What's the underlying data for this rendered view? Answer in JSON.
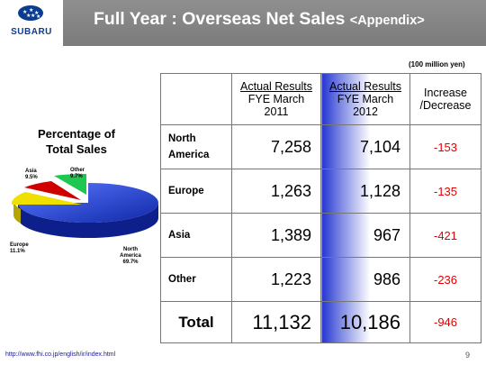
{
  "header": {
    "logo_text": "SUBARU",
    "title": "Full Year : Overseas Net Sales",
    "title_suffix": "<Appendix>"
  },
  "unit_note": "(100 million yen)",
  "pie": {
    "title_line1": "Percentage of",
    "title_line2": "Total Sales",
    "slices": [
      {
        "label": "North America",
        "pct": "69.7%",
        "value": 69.7,
        "color": "#1e3cc8"
      },
      {
        "label": "Europe",
        "pct": "11.1%",
        "value": 11.1,
        "color": "#f0e000"
      },
      {
        "label": "Asia",
        "pct": "9.5%",
        "value": 9.5,
        "color": "#d00000"
      },
      {
        "label": "Other",
        "pct": "9.7%",
        "value": 9.7,
        "color": "#1ec850"
      }
    ]
  },
  "table": {
    "col1_line1": "Actual Results",
    "col1_line2": "FYE March",
    "col1_line3": "2011",
    "col2_line1": "Actual Results",
    "col2_line2": "FYE March",
    "col2_line3": "2012",
    "col3_line1": "Increase",
    "col3_line2": "/Decrease",
    "rows": [
      {
        "label_line1": "North",
        "label_line2": "America",
        "fy2011": "7,258",
        "fy2012": "7,104",
        "change": "-153"
      },
      {
        "label_line1": "Europe",
        "label_line2": "",
        "fy2011": "1,263",
        "fy2012": "1,128",
        "change": "-135"
      },
      {
        "label_line1": "Asia",
        "label_line2": "",
        "fy2011": "1,389",
        "fy2012": "967",
        "change": "-421"
      },
      {
        "label_line1": "Other",
        "label_line2": "",
        "fy2011": "1,223",
        "fy2012": "986",
        "change": "-236"
      }
    ],
    "total": {
      "label": "Total",
      "fy2011": "11,132",
      "fy2012": "10,186",
      "change": "-946"
    }
  },
  "footer": {
    "url": "http://www.fhi.co.jp/english/ir/index.html",
    "page": "9"
  }
}
